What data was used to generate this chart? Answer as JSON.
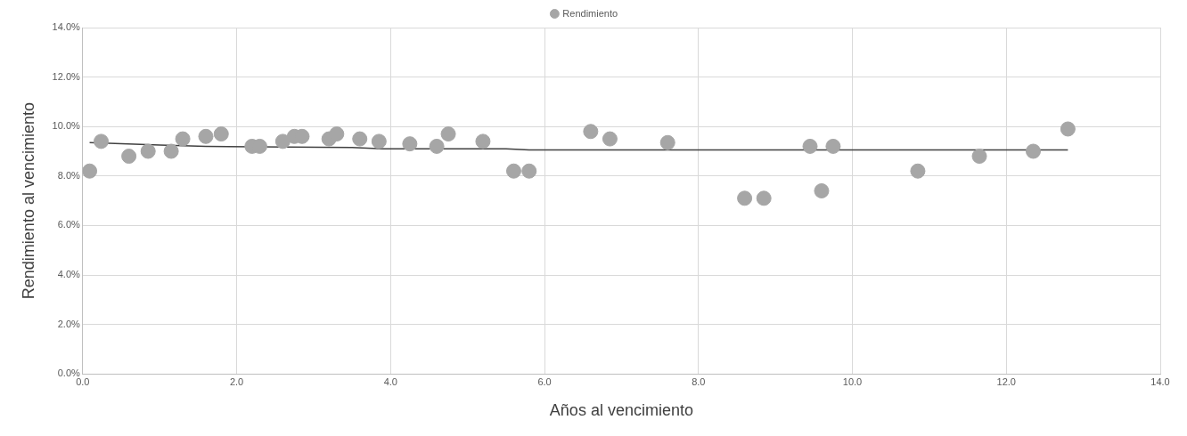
{
  "chart_data": {
    "type": "scatter",
    "xlabel": "Años al vencimiento",
    "ylabel": "Rendimiento al vencimiento",
    "legend": "top",
    "grid": true,
    "xlim": [
      0,
      14
    ],
    "ylim": [
      0,
      14
    ],
    "xticks": [
      {
        "value": 0,
        "label": "0.0"
      },
      {
        "value": 2,
        "label": "2.0"
      },
      {
        "value": 4,
        "label": "4.0"
      },
      {
        "value": 6,
        "label": "6.0"
      },
      {
        "value": 8,
        "label": "8.0"
      },
      {
        "value": 10,
        "label": "10.0"
      },
      {
        "value": 12,
        "label": "12.0"
      },
      {
        "value": 14,
        "label": "14.0"
      }
    ],
    "yticks": [
      {
        "value": 0,
        "label": "0.0%"
      },
      {
        "value": 2,
        "label": "2.0%"
      },
      {
        "value": 4,
        "label": "4.0%"
      },
      {
        "value": 6,
        "label": "6.0%"
      },
      {
        "value": 8,
        "label": "8.0%"
      },
      {
        "value": 10,
        "label": "10.0%"
      },
      {
        "value": 12,
        "label": "12.0%"
      },
      {
        "value": 14,
        "label": "14.0%"
      }
    ],
    "series": [
      {
        "name": "Rendimiento",
        "color": "#a6a6a6",
        "marker": "circle",
        "x": [
          0.09,
          0.24,
          0.6,
          0.85,
          1.15,
          1.3,
          1.6,
          1.8,
          2.2,
          2.3,
          2.6,
          2.75,
          2.85,
          3.2,
          3.3,
          3.6,
          3.85,
          4.25,
          4.6,
          4.75,
          5.2,
          5.6,
          5.8,
          6.6,
          6.85,
          7.6,
          8.6,
          8.85,
          9.45,
          9.6,
          9.75,
          10.85,
          11.65,
          12.35,
          12.8
        ],
        "values": [
          8.2,
          9.4,
          8.8,
          9.0,
          9.0,
          9.5,
          9.6,
          9.7,
          9.2,
          9.2,
          9.4,
          9.6,
          9.6,
          9.5,
          9.7,
          9.5,
          9.4,
          9.3,
          9.2,
          9.7,
          9.4,
          8.2,
          8.2,
          9.8,
          9.5,
          9.35,
          7.1,
          7.1,
          9.2,
          7.4,
          9.2,
          8.2,
          8.8,
          9.0,
          9.9
        ]
      },
      {
        "type": "line",
        "color": "#404040",
        "marker": "none",
        "x": [
          0.09,
          1.0,
          1.6,
          3.5,
          3.9,
          5.5,
          5.8,
          12.8
        ],
        "values": [
          9.35,
          9.25,
          9.2,
          9.15,
          9.1,
          9.1,
          9.05,
          9.05
        ]
      }
    ]
  }
}
